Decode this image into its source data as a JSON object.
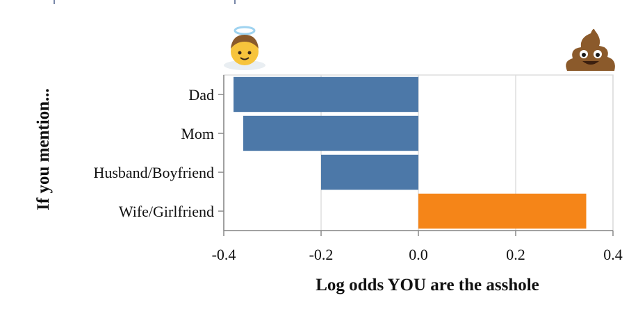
{
  "chart_data": {
    "type": "bar",
    "orientation": "horizontal",
    "categories": [
      "Dad",
      "Mom",
      "Husband/Boyfriend",
      "Wife/Girlfriend"
    ],
    "values": [
      -0.38,
      -0.36,
      -0.2,
      0.345
    ],
    "colors": [
      "#4c78a8",
      "#4c78a8",
      "#4c78a8",
      "#f58518"
    ],
    "xlabel": "Log odds YOU are the asshole",
    "ylabel": "If you mention...",
    "xlim": [
      -0.4,
      0.4
    ],
    "xticks": [
      -0.4,
      -0.2,
      0.0,
      0.2,
      0.4
    ],
    "xtick_labels": [
      "-0.4",
      "-0.2",
      "0.0",
      "0.2",
      "0.4"
    ],
    "grid": true,
    "annotations": {
      "left_icon": "angel-emoji",
      "right_icon": "poop-emoji"
    }
  },
  "colors": {
    "grid": "#dddddd",
    "axis": "#888888",
    "negative": "#4c78a8",
    "positive": "#f58518"
  }
}
